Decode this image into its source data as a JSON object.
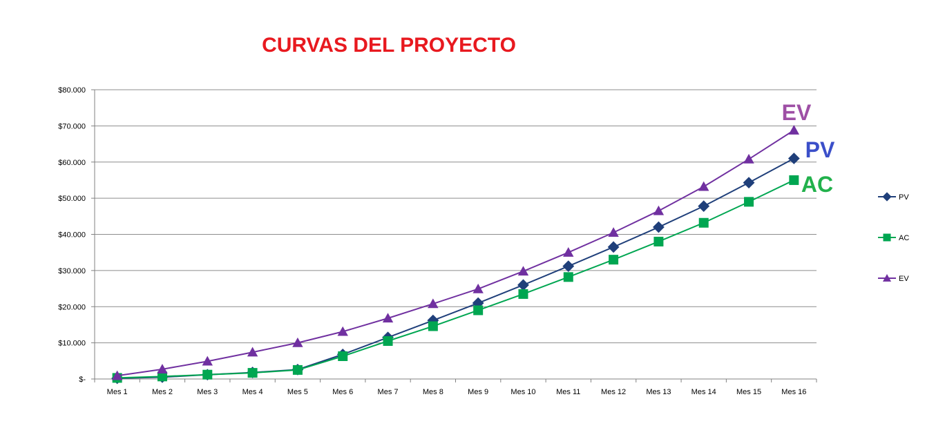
{
  "chart_data": {
    "type": "line",
    "title": "CURVAS DEL PROYECTO",
    "title_color": "#e8191f",
    "categories": [
      "Mes 1",
      "Mes 2",
      "Mes 3",
      "Mes 4",
      "Mes 5",
      "Mes 6",
      "Mes 7",
      "Mes 8",
      "Mes 9",
      "Mes 10",
      "Mes 11",
      "Mes 12",
      "Mes 13",
      "Mes 14",
      "Mes 15",
      "Mes 16"
    ],
    "y_ticks": [
      0,
      10000,
      20000,
      30000,
      40000,
      50000,
      60000,
      70000,
      80000
    ],
    "y_tick_labels": [
      "$-",
      "$10.000",
      "$20.000",
      "$30.000",
      "$40.000",
      "$50.000",
      "$60.000",
      "$70.000",
      "$80.000"
    ],
    "ylim": [
      0,
      80000
    ],
    "grid": true,
    "legend_position": "right",
    "series": [
      {
        "name": "PV",
        "marker": "diamond",
        "color": "#1f3f7a",
        "values": [
          200,
          500,
          1200,
          1800,
          2600,
          6800,
          11500,
          16200,
          21000,
          26000,
          31200,
          36500,
          42000,
          47800,
          54300,
          61000
        ]
      },
      {
        "name": "AC",
        "marker": "square",
        "color": "#00a651",
        "values": [
          300,
          700,
          1200,
          1700,
          2500,
          6300,
          10500,
          14600,
          19000,
          23500,
          28200,
          33000,
          38000,
          43200,
          49000,
          55000
        ]
      },
      {
        "name": "EV",
        "marker": "triangle",
        "color": "#7030a0",
        "values": [
          900,
          2700,
          4900,
          7400,
          10000,
          13100,
          16800,
          20800,
          24900,
          29800,
          35000,
          40500,
          46500,
          53200,
          60800,
          68800
        ]
      }
    ],
    "annotations": [
      {
        "text": "EV",
        "color": "#9e4fa5"
      },
      {
        "text": "PV",
        "color": "#3b4fc9"
      },
      {
        "text": "AC",
        "color": "#22b14c"
      }
    ]
  }
}
